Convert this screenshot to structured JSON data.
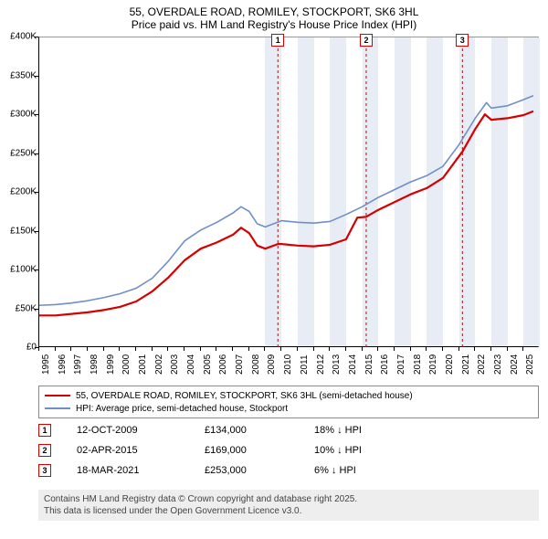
{
  "title": "55, OVERDALE ROAD, ROMILEY, STOCKPORT, SK6 3HL",
  "subtitle": "Price paid vs. HM Land Registry's House Price Index (HPI)",
  "chart": {
    "type": "line",
    "background_color": "#ffffff",
    "band_color": "#e8edf5",
    "xlim": [
      1995,
      2026
    ],
    "ylim": [
      0,
      400000
    ],
    "ytick_step": 50000,
    "yticks": [
      "£0",
      "£50K",
      "£100K",
      "£150K",
      "£200K",
      "£250K",
      "£300K",
      "£350K",
      "£400K"
    ],
    "xticks": [
      1995,
      1996,
      1997,
      1998,
      1999,
      2000,
      2001,
      2002,
      2003,
      2004,
      2005,
      2006,
      2007,
      2008,
      2009,
      2010,
      2011,
      2012,
      2013,
      2014,
      2015,
      2016,
      2017,
      2018,
      2019,
      2020,
      2021,
      2022,
      2023,
      2024,
      2025
    ],
    "bands": [
      [
        2009,
        2010
      ],
      [
        2011,
        2012
      ],
      [
        2013,
        2014
      ],
      [
        2015,
        2016
      ],
      [
        2017,
        2018
      ],
      [
        2019,
        2020
      ],
      [
        2021,
        2022
      ],
      [
        2023,
        2024
      ],
      [
        2025,
        2026
      ]
    ],
    "series": [
      {
        "name": "price_paid",
        "label": "55, OVERDALE ROAD, ROMILEY, STOCKPORT, SK6 3HL (semi-detached house)",
        "color": "#d50000",
        "line_width": 2.2,
        "data": [
          [
            1995,
            42000
          ],
          [
            1996,
            42000
          ],
          [
            1997,
            44000
          ],
          [
            1998,
            46000
          ],
          [
            1999,
            49000
          ],
          [
            2000,
            53000
          ],
          [
            2001,
            60000
          ],
          [
            2002,
            73000
          ],
          [
            2003,
            91000
          ],
          [
            2004,
            113000
          ],
          [
            2005,
            128000
          ],
          [
            2006,
            136000
          ],
          [
            2007,
            146000
          ],
          [
            2007.5,
            155000
          ],
          [
            2008,
            148000
          ],
          [
            2008.5,
            132000
          ],
          [
            2009,
            128000
          ],
          [
            2009.78,
            134000
          ],
          [
            2010,
            134000
          ],
          [
            2011,
            132000
          ],
          [
            2012,
            131000
          ],
          [
            2013,
            133000
          ],
          [
            2014,
            140000
          ],
          [
            2014.7,
            168000
          ],
          [
            2015.25,
            169000
          ],
          [
            2016,
            178000
          ],
          [
            2017,
            188000
          ],
          [
            2018,
            198000
          ],
          [
            2019,
            206000
          ],
          [
            2020,
            219000
          ],
          [
            2021.21,
            253000
          ],
          [
            2022,
            282000
          ],
          [
            2022.6,
            301000
          ],
          [
            2023,
            294000
          ],
          [
            2024,
            296000
          ],
          [
            2025,
            300000
          ],
          [
            2025.6,
            305000
          ]
        ]
      },
      {
        "name": "hpi",
        "label": "HPI: Average price, semi-detached house, Stockport",
        "color": "#6f8fc9",
        "line_width": 1.6,
        "data": [
          [
            1995,
            55000
          ],
          [
            1996,
            56000
          ],
          [
            1997,
            58000
          ],
          [
            1998,
            61000
          ],
          [
            1999,
            65000
          ],
          [
            2000,
            70000
          ],
          [
            2001,
            77000
          ],
          [
            2002,
            90000
          ],
          [
            2003,
            112000
          ],
          [
            2004,
            138000
          ],
          [
            2005,
            152000
          ],
          [
            2006,
            162000
          ],
          [
            2007,
            174000
          ],
          [
            2007.5,
            182000
          ],
          [
            2008,
            176000
          ],
          [
            2008.5,
            160000
          ],
          [
            2009,
            156000
          ],
          [
            2010,
            164000
          ],
          [
            2011,
            162000
          ],
          [
            2012,
            161000
          ],
          [
            2013,
            163000
          ],
          [
            2014,
            172000
          ],
          [
            2015,
            182000
          ],
          [
            2016,
            194000
          ],
          [
            2017,
            204000
          ],
          [
            2018,
            214000
          ],
          [
            2019,
            222000
          ],
          [
            2020,
            234000
          ],
          [
            2021,
            262000
          ],
          [
            2022,
            296000
          ],
          [
            2022.7,
            316000
          ],
          [
            2023,
            309000
          ],
          [
            2024,
            312000
          ],
          [
            2025,
            320000
          ],
          [
            2025.6,
            325000
          ]
        ]
      }
    ],
    "markers": [
      {
        "n": "1",
        "x": 2009.78,
        "y_top": 36,
        "color": "#d50000"
      },
      {
        "n": "2",
        "x": 2015.25,
        "y_top": 36,
        "color": "#d50000"
      },
      {
        "n": "3",
        "x": 2021.21,
        "y_top": 36,
        "color": "#d50000"
      }
    ]
  },
  "legend": {
    "items": [
      {
        "color": "#d50000",
        "width": 2.5,
        "label_key": "chart.series.0.label"
      },
      {
        "color": "#6f8fc9",
        "width": 1.8,
        "label_key": "chart.series.1.label"
      }
    ]
  },
  "sales": [
    {
      "n": "1",
      "color": "#d50000",
      "date": "12-OCT-2009",
      "price": "£134,000",
      "diff": "18% ↓ HPI"
    },
    {
      "n": "2",
      "color": "#d50000",
      "date": "02-APR-2015",
      "price": "£169,000",
      "diff": "10% ↓ HPI"
    },
    {
      "n": "3",
      "color": "#d50000",
      "date": "18-MAR-2021",
      "price": "£253,000",
      "diff": "6% ↓ HPI"
    }
  ],
  "footer": {
    "line1": "Contains HM Land Registry data © Crown copyright and database right 2025.",
    "line2": "This data is licensed under the Open Government Licence v3.0."
  }
}
